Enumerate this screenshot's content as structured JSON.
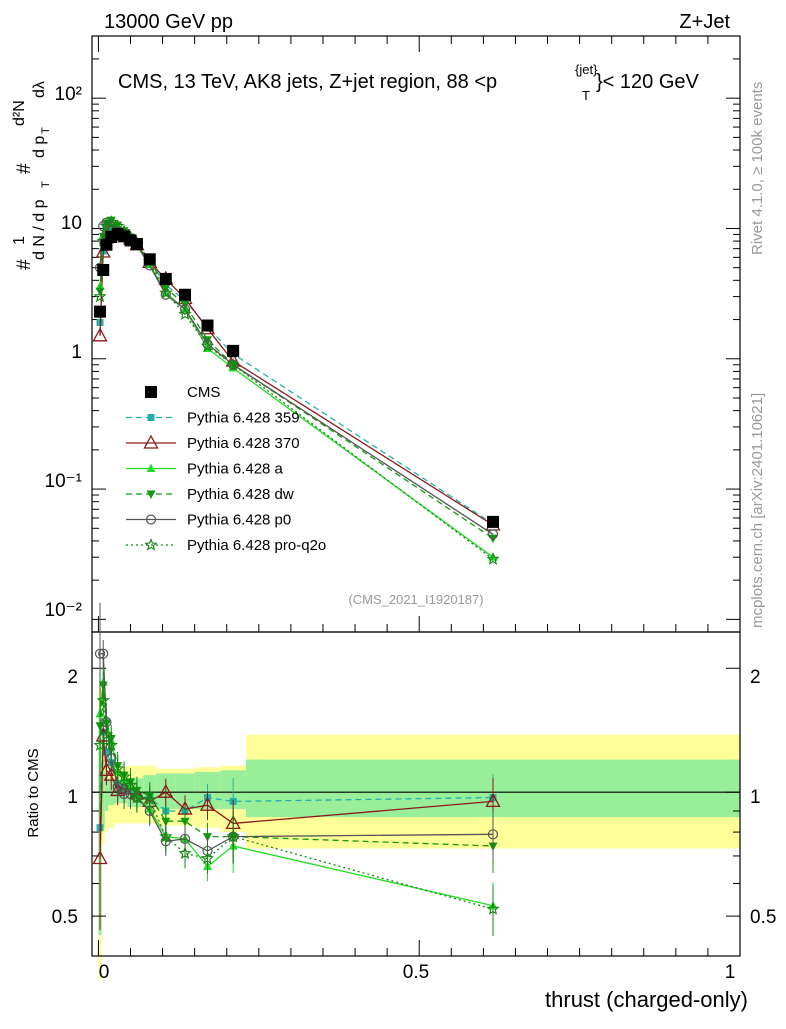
{
  "header": {
    "energy": "13000 GeV pp",
    "process": "Z+Jet",
    "title_main": "CMS, 13 TeV, AK8 jets, Z+jet region, 88 <p",
    "title_sup": "{jet}",
    "title_sub": "T",
    "title_end": "}< 120 GeV",
    "rivet": "Rivet 4.1.0, ≥ 100k events",
    "mcplots": "mcplots.cern.ch [arXiv:2401.10621]",
    "analysis_ref": "(CMS_2021_I1920187)"
  },
  "ylabel": {
    "hash1": "#",
    "one": "1",
    "dN": "d N / d p",
    "dN_sub": "T",
    "hash2": "#",
    "dpT": "d p",
    "dpT_sub": "T",
    "d2N": "d²N",
    "dlambda": "dλ"
  },
  "ratio_ylabel": "Ratio to CMS",
  "xlabel": "thrust (charged-only)",
  "ticks": {
    "main_y": [
      "10⁻²",
      "10⁻¹",
      "1",
      "10",
      "10²"
    ],
    "ratio_y": [
      "0.5",
      "1",
      "2"
    ],
    "ratio_y_right": [
      "0.5",
      "1",
      "2"
    ],
    "x": [
      "0",
      "0.5",
      "1"
    ]
  },
  "chart_data": {
    "type": "line",
    "x": [
      0.0025,
      0.0075,
      0.0125,
      0.02,
      0.03,
      0.04,
      0.05,
      0.06,
      0.08,
      0.105,
      0.135,
      0.17,
      0.21,
      0.615
    ],
    "xlim": [
      -0.01,
      1.0
    ],
    "ylim_main": [
      0.008,
      300
    ],
    "ylim_ratio": [
      0.4,
      2.45
    ],
    "yscale_main": "log",
    "yscale_ratio": "log",
    "series": [
      {
        "name": "CMS",
        "color": "#000000",
        "style": "data",
        "marker": "square",
        "values": [
          2.3,
          4.8,
          7.5,
          8.6,
          9.1,
          8.7,
          8.1,
          7.6,
          5.8,
          4.1,
          3.1,
          1.8,
          1.15,
          0.056
        ],
        "ratio": [
          1,
          1,
          1,
          1,
          1,
          1,
          1,
          1,
          1,
          1,
          1,
          1,
          1,
          1
        ]
      },
      {
        "name": "Pythia 6.428 359",
        "color": "#20b2aa",
        "style": "dashed",
        "marker": "square-small",
        "values": [
          1.9,
          6.7,
          9.4,
          10.1,
          9.6,
          9.0,
          8.2,
          7.4,
          5.6,
          3.7,
          2.8,
          1.75,
          1.09,
          0.054
        ],
        "ratio": [
          0.82,
          1.4,
          1.25,
          1.18,
          1.05,
          1.03,
          1.01,
          0.98,
          0.97,
          0.9,
          0.9,
          0.97,
          0.95,
          0.97
        ]
      },
      {
        "name": "Pythia 6.428 370",
        "color": "#8b1a1a",
        "style": "solid",
        "marker": "triangle-open",
        "values": [
          1.5,
          6.6,
          8.5,
          9.5,
          9.3,
          8.9,
          8.3,
          7.5,
          5.5,
          4.1,
          2.9,
          1.7,
          0.96,
          0.053
        ],
        "ratio": [
          0.69,
          1.37,
          1.13,
          1.1,
          1.01,
          1.02,
          1.02,
          0.99,
          0.95,
          1.0,
          0.91,
          0.93,
          0.84,
          0.95
        ]
      },
      {
        "name": "Pythia 6.428 a",
        "color": "#22dd22",
        "style": "solid",
        "marker": "triangle",
        "values": [
          3.6,
          8.9,
          11.2,
          11.4,
          10.2,
          9.3,
          8.4,
          7.4,
          5.3,
          3.2,
          2.4,
          1.2,
          0.85,
          0.03
        ],
        "ratio": [
          1.55,
          1.85,
          1.5,
          1.33,
          1.12,
          1.07,
          1.03,
          0.97,
          0.91,
          0.78,
          0.77,
          0.66,
          0.74,
          0.53
        ]
      },
      {
        "name": "Pythia 6.428 dw",
        "color": "#119911",
        "style": "dashed",
        "marker": "triangle-down",
        "values": [
          3.3,
          8.7,
          11.0,
          11.6,
          10.6,
          9.6,
          8.6,
          7.7,
          5.7,
          3.5,
          2.6,
          1.4,
          0.9,
          0.042
        ],
        "ratio": [
          1.45,
          1.82,
          1.47,
          1.35,
          1.16,
          1.1,
          1.06,
          1.01,
          0.98,
          0.85,
          0.85,
          0.78,
          0.78,
          0.74
        ]
      },
      {
        "name": "Pythia 6.428 p0",
        "color": "#555555",
        "style": "solid",
        "marker": "circle-open",
        "values": [
          5.0,
          10.4,
          11.1,
          10.4,
          9.4,
          8.6,
          8.0,
          7.4,
          5.2,
          3.1,
          2.4,
          1.3,
          0.9,
          0.045
        ],
        "ratio": [
          2.17,
          2.17,
          1.48,
          1.21,
          1.03,
          0.99,
          0.99,
          0.97,
          0.9,
          0.76,
          0.77,
          0.72,
          0.78,
          0.79
        ]
      },
      {
        "name": "Pythia 6.428 pro-q2o",
        "color": "#118811",
        "style": "dotted",
        "marker": "star",
        "values": [
          3.0,
          8.0,
          10.4,
          11.2,
          10.4,
          9.5,
          8.4,
          7.4,
          5.6,
          3.2,
          2.2,
          1.25,
          0.9,
          0.029
        ],
        "ratio": [
          1.3,
          1.67,
          1.38,
          1.3,
          1.14,
          1.09,
          1.04,
          0.97,
          0.96,
          0.78,
          0.71,
          0.69,
          0.78,
          0.52
        ]
      }
    ],
    "bands": {
      "x_edges": [
        0.0,
        0.005,
        0.01,
        0.015,
        0.025,
        0.035,
        0.045,
        0.055,
        0.07,
        0.09,
        0.12,
        0.15,
        0.19,
        0.23,
        1.0
      ],
      "stat_lo": [
        0.45,
        0.82,
        0.9,
        0.93,
        0.94,
        0.94,
        0.92,
        0.92,
        0.92,
        0.91,
        0.91,
        0.91,
        0.91,
        0.87
      ],
      "stat_hi": [
        1.6,
        1.2,
        1.12,
        1.08,
        1.07,
        1.07,
        1.08,
        1.08,
        1.1,
        1.11,
        1.11,
        1.12,
        1.13,
        1.2
      ],
      "total_lo": [
        0.35,
        0.75,
        0.8,
        0.82,
        0.84,
        0.84,
        0.84,
        0.84,
        0.84,
        0.83,
        0.83,
        0.82,
        0.8,
        0.73
      ],
      "total_hi": [
        1.8,
        1.3,
        1.22,
        1.18,
        1.16,
        1.15,
        1.16,
        1.16,
        1.16,
        1.14,
        1.14,
        1.15,
        1.16,
        1.38
      ],
      "stat_color": "#99ee99",
      "total_color": "#ffff99"
    }
  }
}
